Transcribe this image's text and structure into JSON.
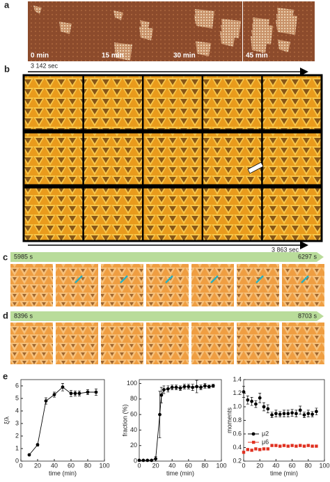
{
  "panels": {
    "a": {
      "label": "a",
      "frames": [
        "0 min",
        "15 min",
        "30 min",
        "45 min"
      ]
    },
    "b": {
      "label": "b",
      "start": "3 142 sec",
      "end": "3 863 sec"
    },
    "c": {
      "label": "c",
      "start": "5985 s",
      "end": "6297 s"
    },
    "d": {
      "label": "d",
      "start": "8396 s",
      "end": "8703 s"
    },
    "e": {
      "label": "e"
    }
  },
  "chart_data": [
    {
      "type": "line",
      "xlabel": "time (min)",
      "ylabel": "ξ/λ",
      "x": [
        10,
        20,
        30,
        40,
        50,
        60,
        65,
        70,
        80,
        90
      ],
      "xlim": [
        0,
        100
      ],
      "xticks": [
        0,
        20,
        40,
        60,
        80,
        100
      ],
      "ylim": [
        0,
        6.5
      ],
      "yticks": [
        0,
        1,
        2,
        3,
        4,
        5,
        6
      ],
      "series": [
        {
          "color": "#000000",
          "values": [
            0.5,
            1.3,
            4.8,
            5.3,
            5.9,
            5.4,
            5.4,
            5.4,
            5.5,
            5.5
          ],
          "errors": [
            0.05,
            0.1,
            0.25,
            0.2,
            0.3,
            0.25,
            0.2,
            0.2,
            0.2,
            0.25
          ]
        }
      ]
    },
    {
      "type": "line",
      "xlabel": "time (min)",
      "ylabel": "fraction (%)",
      "x": [
        0,
        5,
        10,
        15,
        20,
        25,
        27,
        30,
        35,
        40,
        45,
        50,
        55,
        60,
        65,
        70,
        75,
        80,
        85,
        90
      ],
      "xlim": [
        0,
        100
      ],
      "xticks": [
        0,
        20,
        40,
        60,
        80,
        100
      ],
      "ylim": [
        0,
        105
      ],
      "yticks": [
        0,
        20,
        40,
        60,
        80,
        100
      ],
      "series": [
        {
          "color": "#000000",
          "values": [
            1,
            1,
            1,
            1,
            3,
            60,
            85,
            92,
            93,
            95,
            95,
            94,
            96,
            96,
            95,
            96,
            95,
            97,
            96,
            97
          ],
          "errors": [
            0,
            0,
            0,
            0,
            3,
            30,
            10,
            5,
            4,
            3,
            3,
            3,
            3,
            3,
            4,
            8,
            3,
            3,
            2,
            2
          ]
        }
      ]
    },
    {
      "type": "scatter",
      "xlabel": "time (min)",
      "ylabel": "moments",
      "x": [
        0,
        5,
        10,
        15,
        20,
        25,
        30,
        35,
        40,
        45,
        50,
        55,
        60,
        65,
        70,
        75,
        80,
        85,
        90
      ],
      "xlim": [
        0,
        100
      ],
      "xticks": [
        0,
        20,
        40,
        60,
        80,
        100
      ],
      "ylim": [
        0.2,
        1.4
      ],
      "yticks": [
        0.2,
        0.4,
        0.6,
        0.8,
        {
          "value": 1,
          "label": "1.0"
        },
        1.2,
        1.4
      ],
      "legend": "lower-left",
      "series": [
        {
          "name": "μ2",
          "color": "#000000",
          "marker": "circle",
          "values": [
            1.22,
            1.1,
            1.08,
            1.04,
            1.13,
            1.0,
            0.97,
            0.88,
            0.9,
            0.89,
            0.9,
            0.9,
            0.91,
            0.9,
            0.95,
            0.88,
            0.9,
            0.89,
            0.93
          ],
          "errors": [
            0.08,
            0.06,
            0.06,
            0.05,
            0.07,
            0.06,
            0.06,
            0.04,
            0.05,
            0.04,
            0.05,
            0.05,
            0.05,
            0.05,
            0.06,
            0.04,
            0.05,
            0.04,
            0.05
          ]
        },
        {
          "name": "μ6",
          "color": "#e03020",
          "marker": "square",
          "values": [
            0.33,
            0.37,
            0.36,
            0.38,
            0.37,
            0.38,
            0.38,
            0.43,
            0.43,
            0.42,
            0.43,
            0.42,
            0.43,
            0.42,
            0.43,
            0.42,
            0.43,
            0.42,
            0.42
          ],
          "errors": [
            0.01,
            0.01,
            0.01,
            0.01,
            0.01,
            0.01,
            0.01,
            0.01,
            0.01,
            0.01,
            0.01,
            0.01,
            0.01,
            0.01,
            0.01,
            0.01,
            0.01,
            0.01,
            0.01
          ]
        }
      ]
    }
  ]
}
